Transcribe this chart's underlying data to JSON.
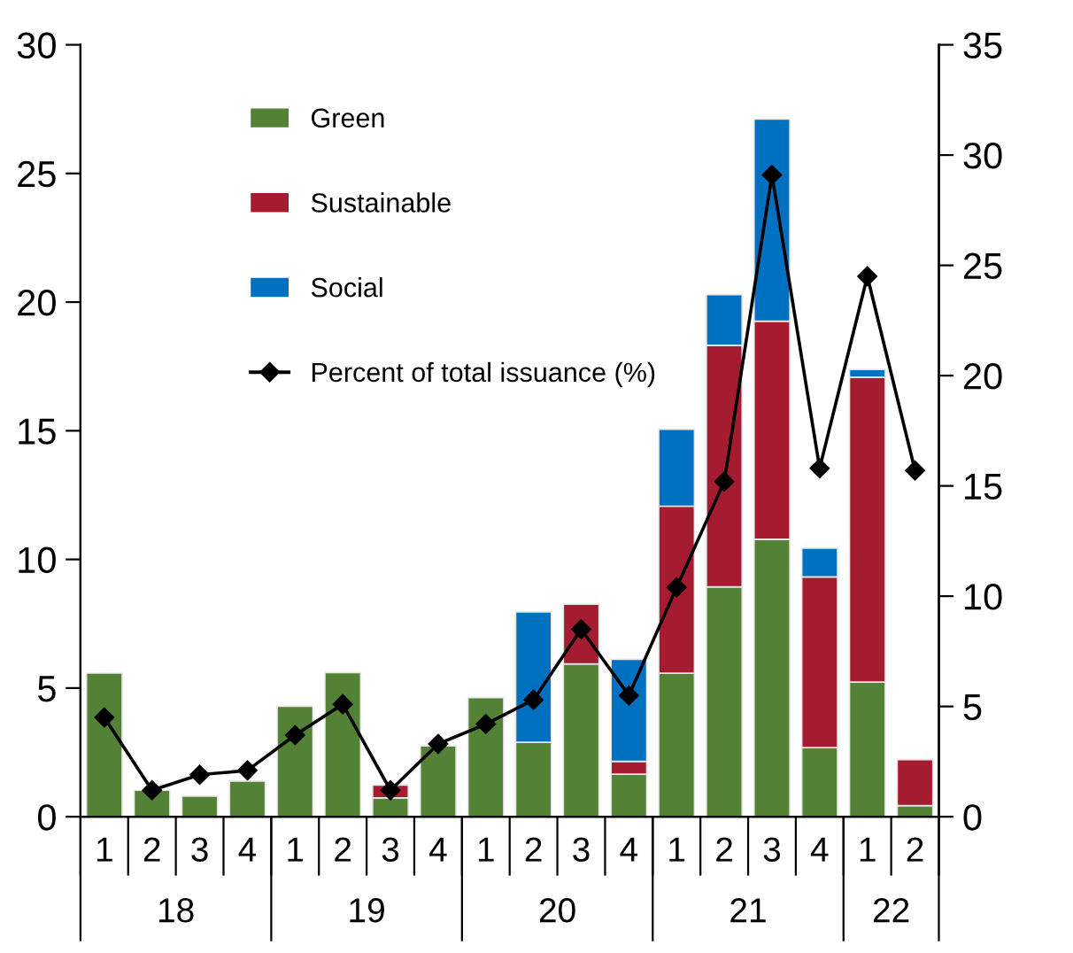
{
  "chart_data": {
    "type": "bar",
    "stacked": true,
    "categories": [
      "1",
      "2",
      "3",
      "4",
      "1",
      "2",
      "3",
      "4",
      "1",
      "2",
      "3",
      "4",
      "1",
      "2",
      "3",
      "4",
      "1",
      "2"
    ],
    "annotations": [
      "18",
      "19",
      "20",
      "21",
      "22"
    ],
    "series": [
      {
        "name": "Green",
        "color": "#538135",
        "values": [
          5.58,
          1.03,
          0.8,
          1.38,
          4.29,
          5.6,
          0.73,
          2.75,
          4.63,
          2.89,
          5.94,
          1.65,
          5.58,
          8.93,
          10.78,
          2.69,
          5.23,
          0.43
        ]
      },
      {
        "name": "Sustainable",
        "color": "#a51c30",
        "values": [
          null,
          null,
          null,
          null,
          null,
          null,
          0.5,
          null,
          null,
          null,
          2.32,
          0.5,
          6.49,
          9.39,
          8.48,
          6.63,
          11.85,
          1.79
        ]
      },
      {
        "name": "Social",
        "color": "#0070c0",
        "values": [
          null,
          null,
          null,
          null,
          null,
          null,
          null,
          null,
          null,
          5.07,
          null,
          3.97,
          2.99,
          1.97,
          7.85,
          1.12,
          0.3,
          null
        ]
      },
      {
        "name": "Percent of total issuance (%)",
        "type": "line",
        "axis": "y2",
        "color": "#000000",
        "marker": "diamond",
        "values": [
          4.5,
          1.2,
          1.9,
          2.1,
          3.7,
          5.1,
          1.2,
          3.3,
          4.2,
          5.3,
          8.5,
          5.5,
          10.4,
          15.2,
          29.1,
          15.8,
          24.5,
          15.7
        ]
      }
    ],
    "ylim": [
      0,
      30
    ],
    "yticks": [
      0,
      5,
      10,
      15,
      20,
      25,
      30
    ],
    "y2lim": [
      0,
      35
    ],
    "y2ticks": [
      0,
      5,
      10,
      15,
      20,
      25,
      30,
      35
    ],
    "grid": false,
    "legend": "top left"
  }
}
